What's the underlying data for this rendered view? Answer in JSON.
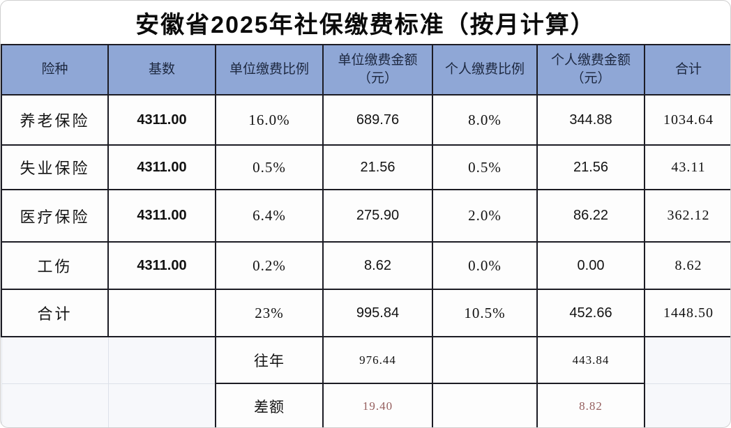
{
  "title": "安徽省2025年社保缴费标准（按月计算）",
  "colors": {
    "header_background": "#8fa7d6",
    "header_text": "#1d2840",
    "grid_border_dark": "#1c1c24",
    "grid_border_light": "#dde1e9",
    "difference_value_text": "#96605f",
    "title_text": "#0b0b0b"
  },
  "table": {
    "columns": [
      "险种",
      "基数",
      "单位缴费比例",
      "单位缴费金额（元）",
      "个人缴费比例",
      "个人缴费金额（元）",
      "合计"
    ],
    "rows": [
      {
        "cells": [
          "养老保险",
          "4311.00",
          "16.0%",
          "689.76",
          "8.0%",
          "344.88",
          "1034.64"
        ]
      },
      {
        "cells": [
          "失业保险",
          "4311.00",
          "0.5%",
          "21.56",
          "0.5%",
          "21.56",
          "43.11"
        ]
      },
      {
        "cells": [
          "医疗保险",
          "4311.00",
          "6.4%",
          "275.90",
          "2.0%",
          "86.22",
          "362.12"
        ]
      },
      {
        "cells": [
          "工伤",
          "4311.00",
          "0.2%",
          "8.62",
          "0.0%",
          "0.00",
          "8.62"
        ]
      },
      {
        "cells": [
          "合计",
          "",
          "23%",
          "995.84",
          "10.5%",
          "452.66",
          "1448.50"
        ]
      },
      {
        "cells": [
          "",
          "",
          "往年",
          "976.44",
          "",
          "443.84",
          ""
        ]
      },
      {
        "cells": [
          "",
          "",
          "差额",
          "19.40",
          "",
          "8.82",
          ""
        ]
      }
    ]
  }
}
